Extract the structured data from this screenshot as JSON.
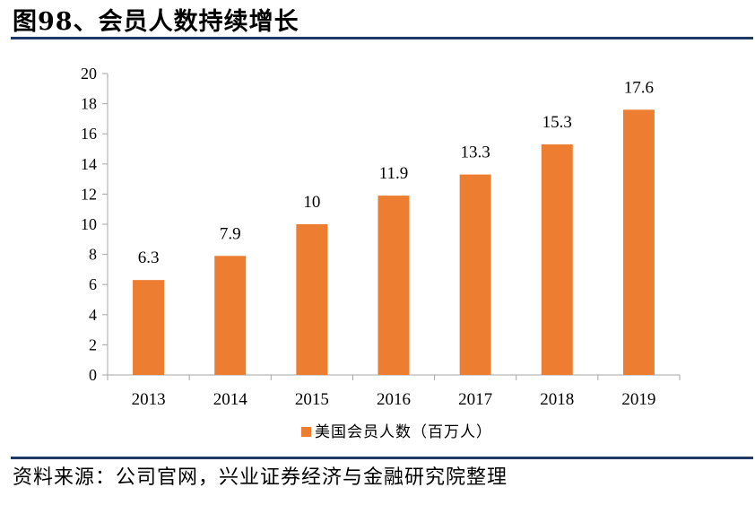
{
  "title": "图98、会员人数持续增长",
  "source": "资料来源：公司官网，兴业证券经济与金融研究院整理",
  "colors": {
    "bar": "#ED7D31",
    "rule": "#1F3864",
    "axis": "#A6A6A6"
  },
  "chart_data": {
    "type": "bar",
    "title": "",
    "xlabel": "",
    "ylabel": "",
    "categories": [
      "2013",
      "2014",
      "2015",
      "2016",
      "2017",
      "2018",
      "2019"
    ],
    "series": [
      {
        "name": "美国会员人数（百万人）",
        "values": [
          6.3,
          7.9,
          10,
          11.9,
          13.3,
          15.3,
          17.6
        ]
      }
    ],
    "data_labels": [
      "6.3",
      "7.9",
      "10",
      "11.9",
      "13.3",
      "15.3",
      "17.6"
    ],
    "ylim": [
      0,
      20
    ],
    "yticks": [
      0,
      2,
      4,
      6,
      8,
      10,
      12,
      14,
      16,
      18,
      20
    ],
    "grid": false,
    "legend": "bottom-center"
  }
}
